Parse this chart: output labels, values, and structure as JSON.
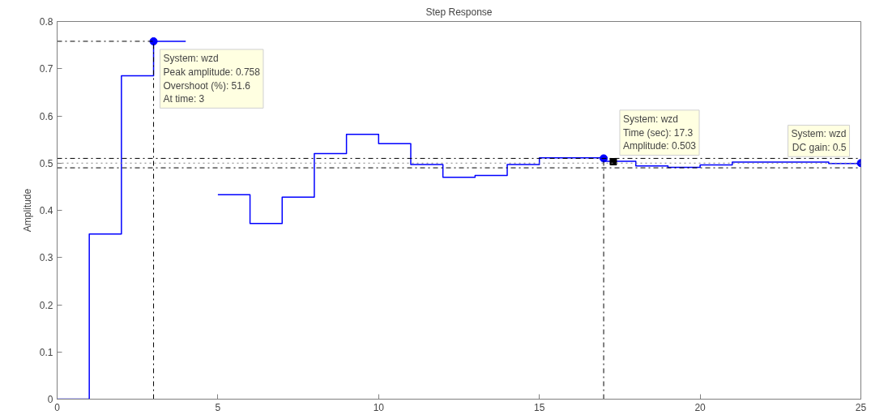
{
  "chart_data": {
    "type": "step",
    "title": "Step Response",
    "ylabel": "Amplitude",
    "x": [
      0,
      1,
      2,
      3,
      4,
      5,
      6,
      7,
      8,
      9,
      10,
      11,
      12,
      13,
      14,
      15,
      16,
      17,
      18,
      19,
      20,
      21,
      22,
      23,
      24,
      25
    ],
    "series": [
      {
        "color": "#0000ff",
        "values": [
          0,
          0.35,
          0.685,
          0.758,
          null,
          0.433,
          0.372,
          0.428,
          0.52,
          0.561,
          0.541,
          0.497,
          0.47,
          0.474,
          0.497,
          0.511,
          0.511,
          0.504,
          0.494,
          0.491,
          0.496,
          0.502,
          0.502,
          0.502,
          0.499,
          0.5
        ]
      },
      {
        "type": "scatter",
        "marker": "circle",
        "color": "#0000ff",
        "x": [
          3,
          17,
          25
        ],
        "values": [
          0.758,
          0.51,
          0.5
        ]
      },
      {
        "type": "scatter",
        "marker": "square",
        "color": "#000000",
        "x": [
          17.3
        ],
        "values": [
          0.503
        ]
      }
    ],
    "ref_lines": [
      {
        "axis": "y",
        "value": 0.51,
        "color": "#000000",
        "line_style": "dashdot"
      },
      {
        "axis": "y",
        "value": 0.5,
        "color": "#808080",
        "line_style": "dotted"
      },
      {
        "axis": "y",
        "value": 0.49,
        "color": "#000000",
        "line_style": "dashdot"
      },
      {
        "axis": "y",
        "value": 0.758,
        "color": "#000000",
        "line_style": "dashdot"
      },
      {
        "axis": "x",
        "value": 3,
        "color": "#000000",
        "line_style": "dashdot"
      },
      {
        "axis": "x",
        "value": 17,
        "color": "#000000",
        "line_style": "dashdot"
      }
    ],
    "annotations": [
      {
        "text": "System: wzd\nPeak amplitude: 0.758\nOvershoot (%): 51.6\nAt time: 3",
        "x": 3,
        "y": 0.758
      },
      {
        "text": "System: wzd\nTime (sec): 17.3\nAmplitude: 0.503",
        "x": 17.3,
        "y": 0.503
      },
      {
        "text": "System: wzd\nDC gain: 0.5",
        "x": 25,
        "y": 0.5
      }
    ],
    "xlim": [
      0,
      25
    ],
    "ylim": [
      0,
      0.8
    ],
    "xticks": [
      0,
      5,
      10,
      15,
      20,
      25
    ],
    "yticks": [
      0,
      0.1,
      0.2,
      0.3,
      0.4,
      0.5,
      0.6,
      0.7,
      0.8
    ],
    "grid": false
  }
}
